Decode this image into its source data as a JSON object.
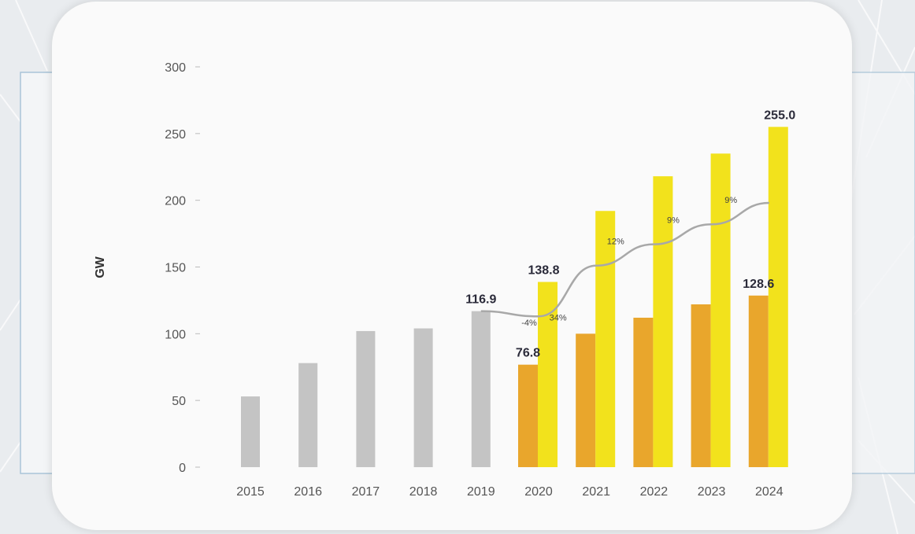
{
  "chart_data": {
    "type": "bar",
    "ylabel": "GW",
    "xlabel": "",
    "ylim": [
      0,
      300
    ],
    "yticks": [
      0,
      50,
      100,
      150,
      200,
      250,
      300
    ],
    "categories": [
      "2015",
      "2016",
      "2017",
      "2018",
      "2019",
      "2020",
      "2021",
      "2022",
      "2023",
      "2024"
    ],
    "series": [
      {
        "name": "",
        "color": "#c4c4c4",
        "values": [
          53,
          78,
          102,
          104,
          116.9,
          null,
          null,
          null,
          null,
          null
        ]
      },
      {
        "name": "",
        "color": "#e9a62c",
        "values": [
          null,
          null,
          null,
          null,
          null,
          76.8,
          100,
          112,
          122,
          128.6
        ]
      },
      {
        "name": "",
        "color": "#f2e21c",
        "values": [
          null,
          null,
          null,
          null,
          null,
          138.8,
          192,
          218,
          235,
          255.0
        ]
      }
    ],
    "growth_line": {
      "color": "#a8a8a8",
      "points": [
        {
          "x": "2019",
          "y": 116.9
        },
        {
          "x": "2020",
          "y": 113
        },
        {
          "x": "2021",
          "y": 151
        },
        {
          "x": "2022",
          "y": 167
        },
        {
          "x": "2023",
          "y": 182
        },
        {
          "x": "2024",
          "y": 198
        }
      ]
    },
    "data_labels": [
      {
        "text": "116.9",
        "x": "2019",
        "series": 0,
        "y": 116.9
      },
      {
        "text": "138.8",
        "x": "2020",
        "series": 2,
        "y": 138.8
      },
      {
        "text": "76.8",
        "x": "2020",
        "series": 1,
        "y": 76.8
      },
      {
        "text": "128.6",
        "x": "2024",
        "series": 1,
        "y": 128.6
      },
      {
        "text": "255.0",
        "x": "2024",
        "series": 2,
        "y": 255.0
      }
    ],
    "growth_labels": [
      {
        "text": "-4%",
        "x": "2020",
        "y": 106
      },
      {
        "text": "34%",
        "x": "2020.5",
        "y": 110
      },
      {
        "text": "12%",
        "x": "2021.5",
        "y": 167
      },
      {
        "text": "9%",
        "x": "2022.5",
        "y": 183
      },
      {
        "text": "9%",
        "x": "2023.5",
        "y": 198
      }
    ]
  }
}
